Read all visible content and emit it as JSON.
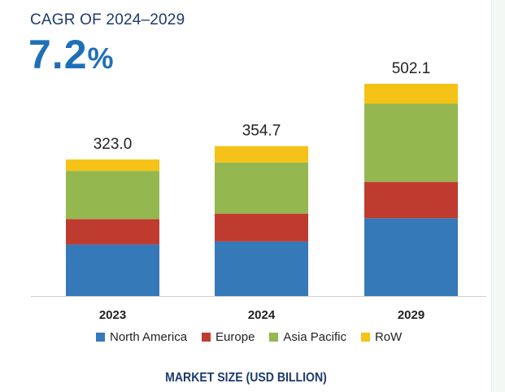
{
  "header": {
    "cagr_label": "CAGR OF 2024–2029",
    "cagr_number": "7.2",
    "cagr_percent": "%"
  },
  "footer": {
    "title": "MARKET SIZE (USD BILLION)"
  },
  "legend": [
    {
      "name": "North America",
      "color": "#3579b8"
    },
    {
      "name": "Europe",
      "color": "#bf3b30"
    },
    {
      "name": "Asia Pacific",
      "color": "#95b74f"
    },
    {
      "name": "RoW",
      "color": "#f5c317"
    }
  ],
  "chart_data": {
    "type": "bar",
    "stacked": true,
    "categories": [
      "2023",
      "2024",
      "2029"
    ],
    "totals": [
      "323.0",
      "354.7",
      "502.1"
    ],
    "series": [
      {
        "name": "North America",
        "color": "#3579b8",
        "values": [
          122,
          129,
          184
        ]
      },
      {
        "name": "Europe",
        "color": "#bf3b30",
        "values": [
          60,
          66,
          86
        ]
      },
      {
        "name": "Asia Pacific",
        "color": "#95b74f",
        "values": [
          114,
          121,
          185
        ]
      },
      {
        "name": "RoW",
        "color": "#f5c317",
        "values": [
          27,
          38.7,
          47.1
        ]
      }
    ],
    "ylim": [
      0,
      502.1
    ],
    "grid": false,
    "legend_position": "bottom"
  }
}
